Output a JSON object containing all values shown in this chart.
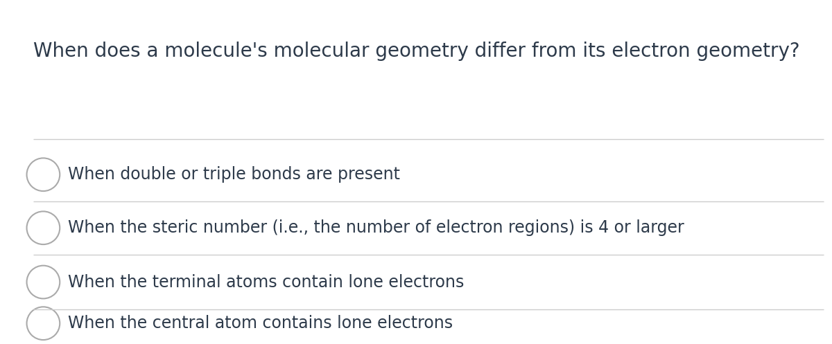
{
  "question": "When does a molecule's molecular geometry differ from its electron geometry?",
  "options": [
    "When double or triple bonds are present",
    "When the steric number (i.e., the number of electron regions) is 4 or larger",
    "When the terminal atoms contain lone electrons",
    "When the central atom contains lone electrons"
  ],
  "background_color": "#ffffff",
  "question_color": "#2d3a4a",
  "option_color": "#2d3a4a",
  "line_color": "#cccccc",
  "circle_edge_color": "#aaaaaa",
  "question_fontsize": 20,
  "option_fontsize": 17
}
